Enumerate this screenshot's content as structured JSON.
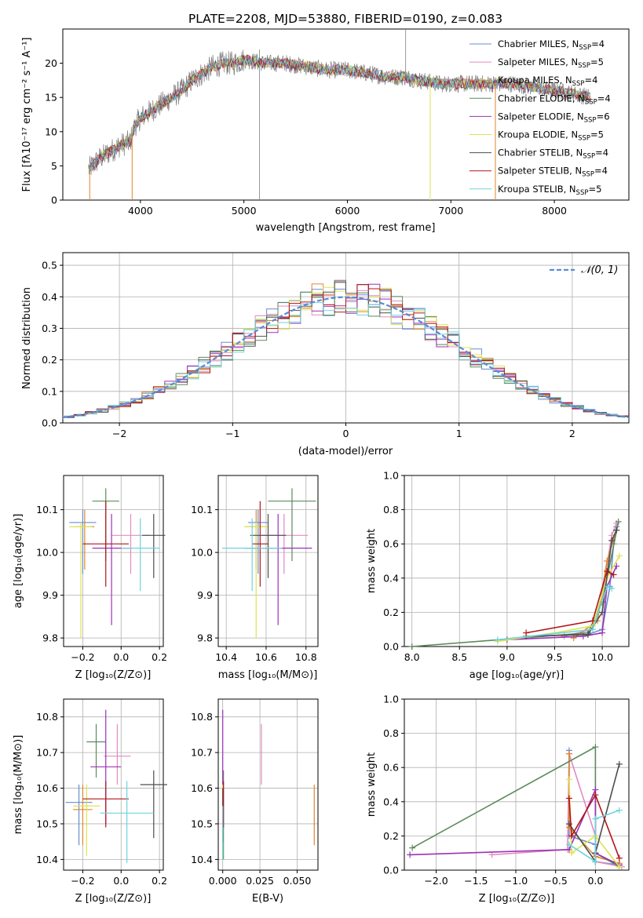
{
  "chart_data": [
    {
      "type": "line",
      "title": "PLATE=2208, MJD=53880, FIBERID=0190, z=0.083",
      "xlabel": "wavelength [Angstrom, rest frame]",
      "ylabel": "Flux [fλ10⁻¹⁷ erg cm⁻² s⁻¹ A⁻¹]",
      "xlim": [
        3250,
        8720
      ],
      "ylim": [
        0,
        25
      ],
      "xticks": [
        "4000",
        "5000",
        "6000",
        "7000",
        "8000"
      ],
      "yticks": [
        "0",
        "5",
        "10",
        "15",
        "20"
      ],
      "grid": false,
      "legend_position": "top-right",
      "spectrum_anchors": {
        "x": [
          3500,
          3600,
          3700,
          3800,
          3900,
          3950,
          4000,
          4100,
          4200,
          4300,
          4400,
          4500,
          4600,
          4700,
          4800,
          4900,
          5000,
          5200,
          5400,
          5600,
          5800,
          6000,
          6200,
          6400,
          6550,
          6700,
          6900,
          7100,
          7300,
          7400,
          7600,
          7800,
          8000,
          8200,
          8350
        ],
        "y": [
          4.5,
          6,
          7,
          8,
          8.5,
          11,
          12,
          13,
          14,
          15,
          16,
          17.5,
          18.5,
          19.5,
          20,
          20,
          20.5,
          20,
          20,
          19.5,
          19,
          19,
          18.5,
          18,
          18,
          17.5,
          17,
          17,
          17,
          17,
          17,
          16.5,
          16,
          15.5,
          15
        ]
      },
      "series": [
        {
          "name": "Chabrier MILES, N",
          "sub": "SSP",
          "suffix": "=4",
          "color": "#6a8bd0"
        },
        {
          "name": "Salpeter MILES, N",
          "sub": "SSP",
          "suffix": "=5",
          "color": "#e28bbf"
        },
        {
          "name": "Kroupa MILES, N",
          "sub": "SSP",
          "suffix": "=4",
          "color": "#e0862c"
        },
        {
          "name": "Chabrier ELODIE, N",
          "sub": "SSP",
          "suffix": "=4",
          "color": "#5b8a5b"
        },
        {
          "name": "Salpeter ELODIE, N",
          "sub": "SSP",
          "suffix": "=6",
          "color": "#9b32b8"
        },
        {
          "name": "Kroupa ELODIE, N",
          "sub": "SSP",
          "suffix": "=5",
          "color": "#dde352"
        },
        {
          "name": "Chabrier STELIB, N",
          "sub": "SSP",
          "suffix": "=4",
          "color": "#4d4d4d"
        },
        {
          "name": "Salpeter STELIB, N",
          "sub": "SSP",
          "suffix": "=4",
          "color": "#b0161b"
        },
        {
          "name": "Kroupa STELIB, N",
          "sub": "SSP",
          "suffix": "=5",
          "color": "#6fd3dd"
        }
      ]
    },
    {
      "type": "histogram",
      "xlabel": "(data-model)/error",
      "ylabel": "Normed distribution",
      "xlim": [
        -2.5,
        2.5
      ],
      "ylim": [
        0,
        0.54
      ],
      "xticks": [
        "−2",
        "−1",
        "0",
        "1",
        "2"
      ],
      "yticks": [
        "0.0",
        "0.1",
        "0.2",
        "0.3",
        "0.4",
        "0.5"
      ],
      "grid": true,
      "legend_position": "top-right",
      "legend": "𝒩(0, 1)",
      "bin_width": 0.1
    },
    {
      "type": "scatter",
      "xlabel": "Z [log₁₀(Z/Z⊙)]",
      "ylabel": "age  [log₁₀(age/yr)]",
      "xlim": [
        -0.3,
        0.22
      ],
      "ylim": [
        9.78,
        10.18
      ],
      "xticks": [
        "−0.2",
        "0.0",
        "0.2"
      ],
      "yticks": [
        "9.8",
        "9.9",
        "10.0",
        "10.1"
      ],
      "grid": true,
      "points": [
        {
          "x": -0.2,
          "y": 10.07,
          "xerr": 0.07,
          "yerr_low": 0.12,
          "yerr_high": 0.03
        },
        {
          "x": 0.05,
          "y": 10.04,
          "xerr": 0.1,
          "yerr_low": 0.09,
          "yerr_high": 0.05
        },
        {
          "x": -0.19,
          "y": 10.06,
          "xerr": 0.05,
          "yerr_low": 0.1,
          "yerr_high": 0.04
        },
        {
          "x": -0.08,
          "y": 10.12,
          "xerr": 0.07,
          "yerr_low": 0.14,
          "yerr_high": 0.03
        },
        {
          "x": -0.05,
          "y": 10.01,
          "xerr": 0.1,
          "yerr_low": 0.18,
          "yerr_high": 0.08
        },
        {
          "x": -0.21,
          "y": 10.06,
          "xerr": 0.06,
          "yerr_low": 0.26,
          "yerr_high": 0.01
        },
        {
          "x": 0.17,
          "y": 10.04,
          "xerr": 0.06,
          "yerr_low": 0.1,
          "yerr_high": 0.05
        },
        {
          "x": -0.08,
          "y": 10.02,
          "xerr": 0.12,
          "yerr_low": 0.1,
          "yerr_high": 0.1
        },
        {
          "x": 0.1,
          "y": 10.01,
          "xerr": 0.1,
          "yerr_low": 0.1,
          "yerr_high": 0.07
        }
      ]
    },
    {
      "type": "scatter",
      "xlabel": "mass [log₁₀(M/M⊙)]",
      "ylabel": "",
      "xlim": [
        10.36,
        10.86
      ],
      "ylim": [
        9.78,
        10.18
      ],
      "xticks": [
        "10.4",
        "10.6",
        "10.8"
      ],
      "yticks": [
        "9.8",
        "9.9",
        "10.0",
        "10.1"
      ],
      "grid": true,
      "points": [
        {
          "x": 10.56,
          "y": 10.07,
          "xerr": 0.05,
          "yerr_low": 0.12,
          "yerr_high": 0.03
        },
        {
          "x": 10.69,
          "y": 10.04,
          "xerr": 0.12,
          "yerr_low": 0.09,
          "yerr_high": 0.05
        },
        {
          "x": 10.55,
          "y": 10.06,
          "xerr": 0.05,
          "yerr_low": 0.1,
          "yerr_high": 0.04
        },
        {
          "x": 10.73,
          "y": 10.12,
          "xerr": 0.12,
          "yerr_low": 0.14,
          "yerr_high": 0.03
        },
        {
          "x": 10.66,
          "y": 10.01,
          "xerr": 0.17,
          "yerr_low": 0.18,
          "yerr_high": 0.08
        },
        {
          "x": 10.55,
          "y": 10.06,
          "xerr": 0.06,
          "yerr_low": 0.26,
          "yerr_high": 0.01
        },
        {
          "x": 10.61,
          "y": 10.04,
          "xerr": 0.09,
          "yerr_low": 0.1,
          "yerr_high": 0.05
        },
        {
          "x": 10.57,
          "y": 10.02,
          "xerr": 0.04,
          "yerr_low": 0.1,
          "yerr_high": 0.1
        },
        {
          "x": 10.53,
          "y": 10.01,
          "xerr": 0.15,
          "yerr_low": 0.1,
          "yerr_high": 0.07
        }
      ]
    },
    {
      "type": "line",
      "xlabel": "age  [log₁₀(age/yr)]",
      "ylabel": "mass weight",
      "xlim": [
        7.92,
        10.28
      ],
      "ylim": [
        0,
        1
      ],
      "xticks": [
        "8.0",
        "8.5",
        "9.0",
        "9.5",
        "10.0"
      ],
      "yticks": [
        "0.0",
        "0.2",
        "0.4",
        "0.6",
        "0.8",
        "1.0"
      ],
      "grid": true,
      "series": [
        {
          "x": [
            9.85,
            10.0,
            10.08,
            10.12,
            10.15
          ],
          "y": [
            0.07,
            0.1,
            0.35,
            0.6,
            0.7
          ]
        },
        {
          "x": [
            9.6,
            9.9,
            10.0,
            10.1,
            10.15
          ],
          "y": [
            0.06,
            0.1,
            0.3,
            0.65,
            0.72
          ]
        },
        {
          "x": [
            9.7,
            9.95,
            10.05,
            10.15
          ],
          "y": [
            0.05,
            0.15,
            0.5,
            0.68
          ]
        },
        {
          "x": [
            8.0,
            9.85,
            10.0,
            10.17
          ],
          "y": [
            0.0,
            0.08,
            0.26,
            0.73
          ]
        },
        {
          "x": [
            9.0,
            9.8,
            10.0,
            10.05,
            10.15
          ],
          "y": [
            0.04,
            0.06,
            0.08,
            0.35,
            0.47
          ]
        },
        {
          "x": [
            8.9,
            9.5,
            9.9,
            10.05,
            10.18
          ],
          "y": [
            0.03,
            0.08,
            0.12,
            0.4,
            0.53
          ]
        },
        {
          "x": [
            9.2,
            9.85,
            10.0,
            10.1,
            10.15
          ],
          "y": [
            0.06,
            0.07,
            0.2,
            0.62,
            0.68
          ]
        },
        {
          "x": [
            9.2,
            9.9,
            10.05,
            10.12
          ],
          "y": [
            0.08,
            0.15,
            0.44,
            0.42
          ]
        },
        {
          "x": [
            8.9,
            9.9,
            10.05,
            10.1
          ],
          "y": [
            0.04,
            0.1,
            0.35,
            0.34
          ]
        }
      ]
    },
    {
      "type": "scatter",
      "xlabel": "Z [log₁₀(Z/Z⊙)]",
      "ylabel": "mass [log₁₀(M/M⊙)]",
      "xlim": [
        -0.3,
        0.22
      ],
      "ylim": [
        10.37,
        10.85
      ],
      "xticks": [
        "−0.2",
        "0.0",
        "0.2"
      ],
      "yticks": [
        "10.4",
        "10.5",
        "10.6",
        "10.7",
        "10.8"
      ],
      "grid": true,
      "points": [
        {
          "x": -0.22,
          "y": 10.56,
          "xerr": 0.07,
          "yerr_low": 0.12,
          "yerr_high": 0.05
        },
        {
          "x": -0.02,
          "y": 10.69,
          "xerr": 0.07,
          "yerr_low": 0.08,
          "yerr_high": 0.09
        },
        {
          "x": -0.2,
          "y": 10.54,
          "xerr": 0.05,
          "yerr_low": 0.1,
          "yerr_high": 0.07
        },
        {
          "x": -0.13,
          "y": 10.73,
          "xerr": 0.05,
          "yerr_low": 0.1,
          "yerr_high": 0.05
        },
        {
          "x": -0.08,
          "y": 10.66,
          "xerr": 0.08,
          "yerr_low": 0.16,
          "yerr_high": 0.16
        },
        {
          "x": -0.18,
          "y": 10.55,
          "xerr": 0.07,
          "yerr_low": 0.14,
          "yerr_high": 0.06
        },
        {
          "x": 0.17,
          "y": 10.61,
          "xerr": 0.07,
          "yerr_low": 0.15,
          "yerr_high": 0.04
        },
        {
          "x": -0.08,
          "y": 10.57,
          "xerr": 0.12,
          "yerr_low": 0.08,
          "yerr_high": 0.05
        },
        {
          "x": 0.03,
          "y": 10.53,
          "xerr": 0.14,
          "yerr_low": 0.14,
          "yerr_high": 0.09
        }
      ]
    },
    {
      "type": "scatter",
      "xlabel": "E(B-V)",
      "ylabel": "",
      "xlim": [
        -0.003,
        0.064
      ],
      "ylim": [
        10.37,
        10.85
      ],
      "xticks": [
        "0.000",
        "0.025",
        "0.050"
      ],
      "yticks": [
        "10.4",
        "10.5",
        "10.6",
        "10.7",
        "10.8"
      ],
      "grid": true,
      "points": [
        {
          "x": 0.0,
          "y": 10.56,
          "xerr": 0,
          "yerr_low": 0.12,
          "yerr_high": 0.05
        },
        {
          "x": 0.026,
          "y": 10.69,
          "xerr": 0,
          "yerr_low": 0.08,
          "yerr_high": 0.09
        },
        {
          "x": 0.0615,
          "y": 10.54,
          "xerr": 0,
          "yerr_low": 0.1,
          "yerr_high": 0.07
        },
        {
          "x": 0.0005,
          "y": 10.6,
          "xerr": 0,
          "yerr_low": 0.2,
          "yerr_high": 0.05
        },
        {
          "x": 0.0,
          "y": 10.66,
          "xerr": 0,
          "yerr_low": 0.16,
          "yerr_high": 0.16
        },
        {
          "x": 0.0,
          "y": 10.55,
          "xerr": 0,
          "yerr_low": 0.14,
          "yerr_high": 0.06
        },
        {
          "x": 0.0,
          "y": 10.55,
          "xerr": 0,
          "yerr_low": 0.1,
          "yerr_high": 0.05
        },
        {
          "x": 0.0005,
          "y": 10.57,
          "xerr": 0,
          "yerr_low": 0.08,
          "yerr_high": 0.05
        },
        {
          "x": 0.0,
          "y": 10.5,
          "xerr": 0,
          "yerr_low": 0.1,
          "yerr_high": 0.05
        }
      ]
    },
    {
      "type": "line",
      "xlabel": "Z [log₁₀(Z/Z⊙)]",
      "ylabel": "mass weight",
      "xlim": [
        -2.4,
        0.42
      ],
      "ylim": [
        0,
        1
      ],
      "xticks": [
        "−2.0",
        "−1.5",
        "−1.0",
        "−0.5",
        "0.0"
      ],
      "yticks": [
        "0.0",
        "0.2",
        "0.4",
        "0.6",
        "0.8",
        "1.0"
      ],
      "grid": true,
      "series": [
        {
          "x": [
            -0.33,
            -0.33,
            0.0,
            0.0,
            0.3
          ],
          "y": [
            0.7,
            0.2,
            0.15,
            0.05,
            0.03
          ]
        },
        {
          "x": [
            -1.3,
            -0.35,
            -0.33,
            0.0,
            0.0,
            0.33
          ],
          "y": [
            0.09,
            0.12,
            0.68,
            0.2,
            0.05,
            0.02
          ]
        },
        {
          "x": [
            -0.33,
            -0.33,
            0.0,
            0.3
          ],
          "y": [
            0.68,
            0.25,
            0.08,
            0.04
          ]
        },
        {
          "x": [
            -2.3,
            0.0,
            0.0,
            0.3
          ],
          "y": [
            0.13,
            0.72,
            0.1,
            0.02
          ]
        },
        {
          "x": [
            -2.33,
            -0.33,
            0.0,
            0.0,
            0.3
          ],
          "y": [
            0.09,
            0.12,
            0.47,
            0.1,
            0.03
          ]
        },
        {
          "x": [
            -0.33,
            -0.3,
            0.0,
            0.3
          ],
          "y": [
            0.53,
            0.1,
            0.2,
            0.02
          ]
        },
        {
          "x": [
            -0.33,
            0.0,
            0.0,
            0.3
          ],
          "y": [
            0.27,
            0.05,
            0.1,
            0.62
          ]
        },
        {
          "x": [
            -0.33,
            -0.3,
            0.0,
            0.3
          ],
          "y": [
            0.42,
            0.2,
            0.44,
            0.07
          ]
        },
        {
          "x": [
            -0.33,
            0.0,
            0.0,
            0.3
          ],
          "y": [
            0.15,
            0.05,
            0.3,
            0.35
          ]
        }
      ]
    }
  ]
}
